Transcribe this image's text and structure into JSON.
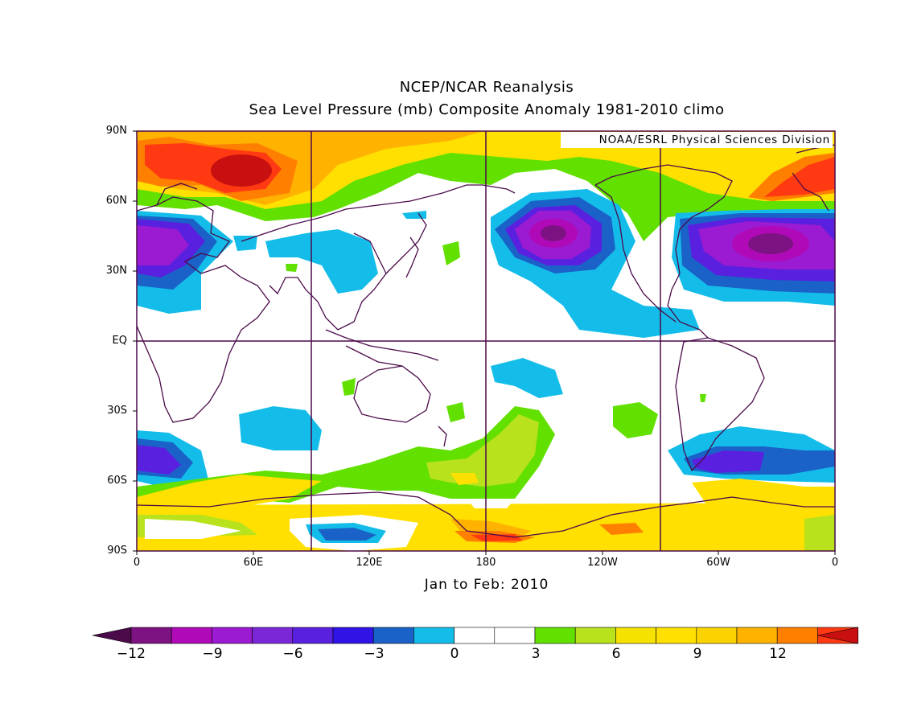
{
  "title": "NCEP/NCAR Reanalysis",
  "subtitle": "Sea Level Pressure (mb) Composite Anomaly 1981-2010 climo",
  "credit": "NOAA/ESRL Physical Sciences Division",
  "period_label": "Jan to Feb: 2010",
  "y_axis_ticks": [
    "90N",
    "60N",
    "30N",
    "EQ",
    "30S",
    "60S",
    "90S"
  ],
  "x_axis_ticks": [
    "0",
    "60E",
    "120E",
    "180",
    "120W",
    "60W",
    "0"
  ],
  "colorbar": {
    "labels": [
      "−12",
      "−9",
      "−6",
      "−3",
      "0",
      "3",
      "6",
      "9",
      "12"
    ],
    "colors": [
      "#4b0a4a",
      "#7d1382",
      "#b00ab8",
      "#9a1bd1",
      "#7a27d8",
      "#5a20e0",
      "#3014e6",
      "#1a62c8",
      "#14bde9",
      "#ffffff",
      "#ffffff",
      "#62e000",
      "#b7e21c",
      "#f6e200",
      "#ffe000",
      "#fbd300",
      "#ffb300",
      "#ff8000",
      "#ff3a12",
      "#c81010"
    ]
  },
  "map": {
    "projection": "cylindrical equidistant",
    "lon_range": [
      0,
      360
    ],
    "lat_range": [
      -90,
      90
    ],
    "gridlines": "every 90 degrees longitude, equator"
  }
}
